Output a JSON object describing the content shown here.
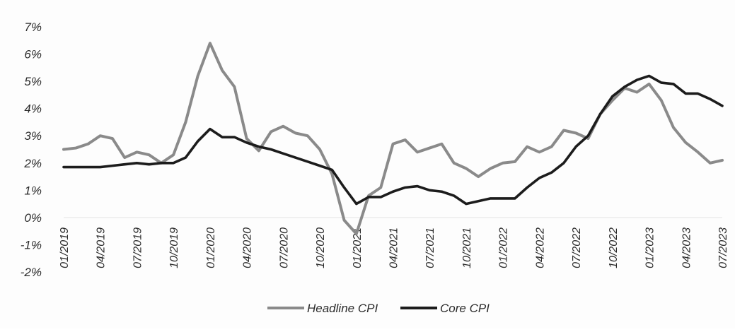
{
  "chart_data": {
    "type": "line",
    "title": "",
    "xlabel": "",
    "ylabel": "",
    "ylim": [
      -2,
      7
    ],
    "y_tick_values": [
      -2,
      -1,
      0,
      1,
      2,
      3,
      4,
      5,
      6,
      7
    ],
    "y_tick_labels": [
      "-2%",
      "-1%",
      "0%",
      "1%",
      "2%",
      "3%",
      "4%",
      "5%",
      "6%",
      "7%"
    ],
    "grid": "off (only a faint zero baseline)",
    "legend_position": "bottom",
    "x": [
      "01/2019",
      "02/2019",
      "03/2019",
      "04/2019",
      "05/2019",
      "06/2019",
      "07/2019",
      "08/2019",
      "09/2019",
      "10/2019",
      "11/2019",
      "12/2019",
      "01/2020",
      "02/2020",
      "03/2020",
      "04/2020",
      "05/2020",
      "06/2020",
      "07/2020",
      "08/2020",
      "09/2020",
      "10/2020",
      "11/2020",
      "12/2020",
      "01/2021",
      "02/2021",
      "03/2021",
      "04/2021",
      "05/2021",
      "06/2021",
      "07/2021",
      "08/2021",
      "09/2021",
      "10/2021",
      "11/2021",
      "12/2021",
      "01/2022",
      "02/2022",
      "03/2022",
      "04/2022",
      "05/2022",
      "06/2022",
      "07/2022",
      "08/2022",
      "09/2022",
      "10/2022",
      "11/2022",
      "12/2022",
      "01/2023",
      "02/2023",
      "03/2023",
      "04/2023",
      "05/2023",
      "06/2023",
      "07/2023"
    ],
    "x_tick_labels": [
      "01/2019",
      "04/2019",
      "07/2019",
      "10/2019",
      "01/2020",
      "04/2020",
      "07/2020",
      "10/2020",
      "01/2021",
      "04/2021",
      "07/2021",
      "10/2021",
      "01/2022",
      "04/2022",
      "07/2022",
      "10/2022",
      "01/2023",
      "04/2023",
      "07/2023"
    ],
    "series": [
      {
        "name": "Headline CPI",
        "color": "#8a8a8a",
        "values": [
          2.5,
          2.55,
          2.7,
          3.0,
          2.9,
          2.2,
          2.4,
          2.3,
          2.0,
          2.3,
          3.5,
          5.2,
          6.4,
          5.4,
          4.8,
          2.9,
          2.45,
          3.15,
          3.35,
          3.1,
          3.0,
          2.5,
          1.6,
          -0.1,
          -0.6,
          0.8,
          1.1,
          2.7,
          2.85,
          2.4,
          2.55,
          2.7,
          2.0,
          1.8,
          1.5,
          1.8,
          2.0,
          2.05,
          2.6,
          2.4,
          2.6,
          3.2,
          3.1,
          2.9,
          3.8,
          4.3,
          4.75,
          4.6,
          4.9,
          4.3,
          3.3,
          2.75,
          2.4,
          2.0,
          2.1
        ]
      },
      {
        "name": "Core CPI",
        "color": "#1c1c1c",
        "values": [
          1.85,
          1.85,
          1.85,
          1.85,
          1.9,
          1.95,
          2.0,
          1.95,
          2.0,
          2.0,
          2.2,
          2.8,
          3.25,
          2.95,
          2.95,
          2.75,
          2.6,
          2.5,
          2.35,
          2.2,
          2.05,
          1.9,
          1.75,
          1.1,
          0.5,
          0.75,
          0.75,
          0.95,
          1.1,
          1.15,
          1.0,
          0.95,
          0.8,
          0.5,
          0.6,
          0.7,
          0.7,
          0.7,
          1.1,
          1.45,
          1.65,
          2.0,
          2.6,
          3.0,
          3.8,
          4.45,
          4.8,
          5.05,
          5.2,
          4.95,
          4.9,
          4.55,
          4.55,
          4.35,
          4.1
        ]
      }
    ]
  }
}
